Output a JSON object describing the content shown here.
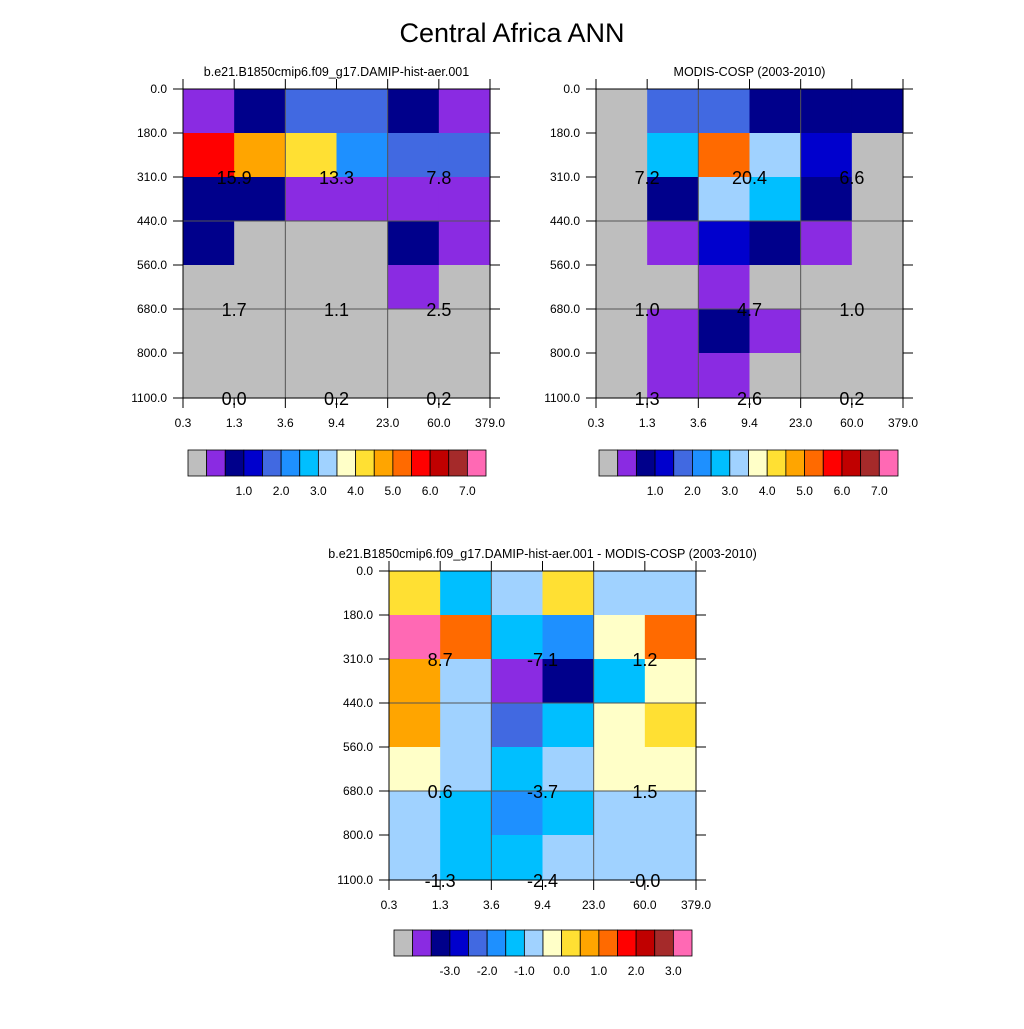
{
  "title": "Central Africa ANN",
  "colors": {
    "abs_palette": [
      "#bebebe",
      "#8a2be2",
      "#00008b",
      "#0000cd",
      "#4169e1",
      "#1e90ff",
      "#00bfff",
      "#a0d2ff",
      "#ffffc8",
      "#ffe033",
      "#ffa500",
      "#ff6a00",
      "#ff0000",
      "#c00000",
      "#a52a2a",
      "#ff69b4"
    ],
    "diff_palette": [
      "#bebebe",
      "#8a2be2",
      "#00008b",
      "#0000cd",
      "#4169e1",
      "#1e90ff",
      "#00bfff",
      "#a0d2ff",
      "#ffffc8",
      "#ffe033",
      "#ffa500",
      "#ff6a00",
      "#ff0000",
      "#c00000",
      "#a52a2a",
      "#ff69b4"
    ]
  },
  "chart_data": [
    {
      "type": "heatmap",
      "title": "b.e21.B1850cmip6.f09_g17.DAMIP-hist-aer.001",
      "x_tick_labels": [
        "0.3",
        "1.3",
        "3.6",
        "9.4",
        "23.0",
        "60.0",
        "379.0"
      ],
      "y_tick_labels": [
        "0.0",
        "180.0",
        "310.0",
        "440.0",
        "560.0",
        "680.0",
        "800.0",
        "1100.0"
      ],
      "cell_color_index": [
        [
          1,
          2,
          4,
          4,
          2,
          1
        ],
        [
          12,
          10,
          9,
          5,
          4,
          4
        ],
        [
          2,
          2,
          1,
          1,
          1,
          1
        ],
        [
          2,
          0,
          0,
          0,
          2,
          1
        ],
        [
          0,
          0,
          0,
          0,
          1,
          0
        ],
        [
          0,
          0,
          0,
          0,
          0,
          0
        ],
        [
          0,
          0,
          0,
          0,
          0,
          0
        ]
      ],
      "block_values": [
        {
          "row": 1,
          "col": 1,
          "label": "15.9"
        },
        {
          "row": 1,
          "col": 3,
          "label": "13.3"
        },
        {
          "row": 1,
          "col": 5,
          "label": "7.8"
        },
        {
          "row": 4,
          "col": 1,
          "label": "1.7"
        },
        {
          "row": 4,
          "col": 3,
          "label": "1.1"
        },
        {
          "row": 4,
          "col": 5,
          "label": "2.5"
        },
        {
          "row": 6,
          "col": 1,
          "label": "0.0"
        },
        {
          "row": 6,
          "col": 3,
          "label": "0.2"
        },
        {
          "row": 6,
          "col": 5,
          "label": "0.2"
        }
      ],
      "colorbar_labels": [
        "1.0",
        "2.0",
        "3.0",
        "4.0",
        "5.0",
        "6.0",
        "7.0"
      ]
    },
    {
      "type": "heatmap",
      "title": "MODIS-COSP (2003-2010)",
      "x_tick_labels": [
        "0.3",
        "1.3",
        "3.6",
        "9.4",
        "23.0",
        "60.0",
        "379.0"
      ],
      "y_tick_labels": [
        "0.0",
        "180.0",
        "310.0",
        "440.0",
        "560.0",
        "680.0",
        "800.0",
        "1100.0"
      ],
      "cell_color_index": [
        [
          0,
          4,
          4,
          2,
          2,
          2
        ],
        [
          0,
          6,
          11,
          7,
          3,
          0
        ],
        [
          0,
          2,
          7,
          6,
          2,
          0
        ],
        [
          0,
          1,
          3,
          2,
          1,
          0
        ],
        [
          0,
          0,
          1,
          0,
          0,
          0
        ],
        [
          0,
          1,
          2,
          1,
          0,
          0
        ],
        [
          0,
          1,
          1,
          0,
          0,
          0
        ]
      ],
      "block_values": [
        {
          "row": 1,
          "col": 1,
          "label": "7.2"
        },
        {
          "row": 1,
          "col": 3,
          "label": "20.4"
        },
        {
          "row": 1,
          "col": 5,
          "label": "6.6"
        },
        {
          "row": 4,
          "col": 1,
          "label": "1.0"
        },
        {
          "row": 4,
          "col": 3,
          "label": "4.7"
        },
        {
          "row": 4,
          "col": 5,
          "label": "1.0"
        },
        {
          "row": 6,
          "col": 1,
          "label": "1.3"
        },
        {
          "row": 6,
          "col": 3,
          "label": "2.6"
        },
        {
          "row": 6,
          "col": 5,
          "label": "0.2"
        }
      ],
      "colorbar_labels": [
        "1.0",
        "2.0",
        "3.0",
        "4.0",
        "5.0",
        "6.0",
        "7.0"
      ]
    },
    {
      "type": "heatmap",
      "title": "b.e21.B1850cmip6.f09_g17.DAMIP-hist-aer.001 - MODIS-COSP (2003-2010)",
      "x_tick_labels": [
        "0.3",
        "1.3",
        "3.6",
        "9.4",
        "23.0",
        "60.0",
        "379.0"
      ],
      "y_tick_labels": [
        "0.0",
        "180.0",
        "310.0",
        "440.0",
        "560.0",
        "680.0",
        "800.0",
        "1100.0"
      ],
      "cell_color_index": [
        [
          9,
          6,
          7,
          9,
          7,
          7
        ],
        [
          15,
          11,
          6,
          5,
          8,
          11
        ],
        [
          10,
          7,
          1,
          2,
          6,
          8
        ],
        [
          10,
          7,
          4,
          6,
          8,
          9
        ],
        [
          8,
          7,
          6,
          7,
          8,
          8
        ],
        [
          7,
          6,
          5,
          6,
          7,
          7
        ],
        [
          7,
          6,
          6,
          7,
          7,
          7
        ]
      ],
      "block_values": [
        {
          "row": 1,
          "col": 1,
          "label": "8.7"
        },
        {
          "row": 1,
          "col": 3,
          "label": "-7.1"
        },
        {
          "row": 1,
          "col": 5,
          "label": "1.2"
        },
        {
          "row": 4,
          "col": 1,
          "label": "0.6"
        },
        {
          "row": 4,
          "col": 3,
          "label": "-3.7"
        },
        {
          "row": 4,
          "col": 5,
          "label": "1.5"
        },
        {
          "row": 6,
          "col": 1,
          "label": "-1.3"
        },
        {
          "row": 6,
          "col": 3,
          "label": "-2.4"
        },
        {
          "row": 6,
          "col": 5,
          "label": "-0.0"
        }
      ],
      "colorbar_labels": [
        "-3.0",
        "-2.0",
        "-1.0",
        "0.0",
        "1.0",
        "2.0",
        "3.0"
      ]
    }
  ]
}
